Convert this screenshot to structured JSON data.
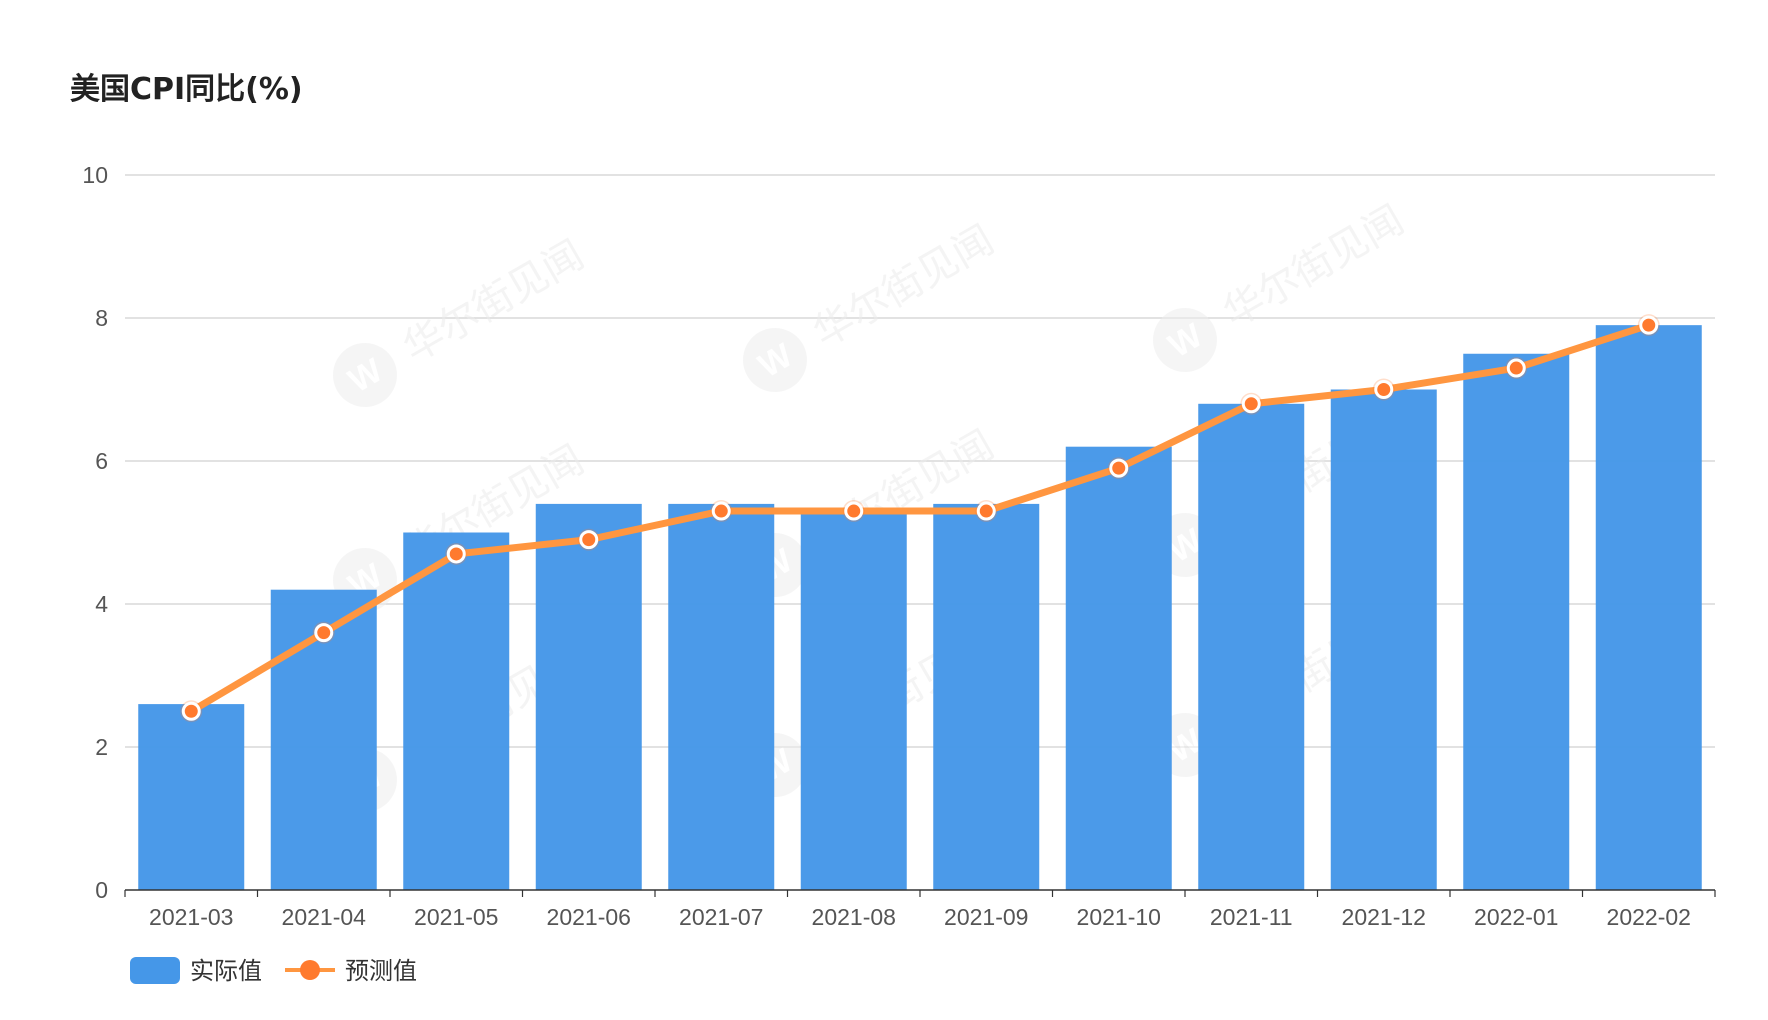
{
  "chart_data": {
    "type": "bar",
    "title": "美国CPI同比(%)",
    "categories": [
      "2021-03",
      "2021-04",
      "2021-05",
      "2021-06",
      "2021-07",
      "2021-08",
      "2021-09",
      "2021-10",
      "2021-11",
      "2021-12",
      "2022-01",
      "2022-02"
    ],
    "series": [
      {
        "name": "实际值",
        "type": "bar",
        "color": "#4597e8",
        "values": [
          2.6,
          4.2,
          5.0,
          5.4,
          5.4,
          5.3,
          5.4,
          6.2,
          6.8,
          7.0,
          7.5,
          7.9
        ]
      },
      {
        "name": "预测值",
        "type": "line",
        "color": "#ff9640",
        "values": [
          2.5,
          3.6,
          4.7,
          4.9,
          5.3,
          5.3,
          5.3,
          5.9,
          6.8,
          7.0,
          7.3,
          7.9
        ]
      }
    ],
    "ylim": [
      0,
      10
    ],
    "yticks": [
      0,
      2,
      4,
      6,
      8,
      10
    ],
    "xlabel": "",
    "ylabel": "",
    "grid": true,
    "legend": "bottom-left"
  },
  "watermark": {
    "text": "华尔街见闻"
  }
}
